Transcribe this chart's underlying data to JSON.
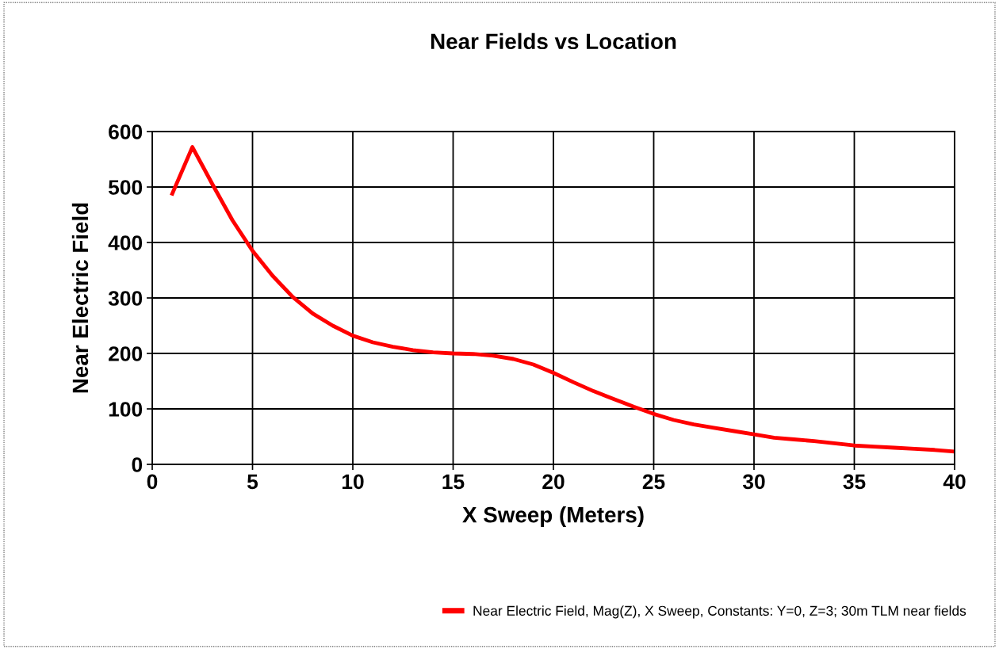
{
  "chart_data": {
    "type": "line",
    "title": "Near Fields vs Location",
    "xlabel": "X Sweep (Meters)",
    "ylabel": "Near Electric Field",
    "x": [
      1,
      2,
      3,
      4,
      5,
      6,
      7,
      8,
      9,
      10,
      11,
      12,
      13,
      14,
      15,
      16,
      17,
      18,
      19,
      20,
      21,
      22,
      23,
      24,
      25,
      26,
      27,
      28,
      29,
      30,
      31,
      32,
      33,
      34,
      35,
      36,
      37,
      38,
      39,
      40
    ],
    "series": [
      {
        "name": "Near Electric Field, Mag(Z), X Sweep, Constants: Y=0, Z=3; 30m TLM near fields",
        "color": "#ff0000",
        "values": [
          488,
          572,
          505,
          440,
          385,
          340,
          302,
          272,
          250,
          232,
          220,
          212,
          206,
          202,
          200,
          199,
          196,
          190,
          180,
          165,
          148,
          132,
          118,
          104,
          91,
          80,
          72,
          66,
          60,
          54,
          48,
          45,
          42,
          38,
          34,
          32,
          30,
          28,
          26,
          23
        ]
      }
    ],
    "xlim": [
      0,
      40
    ],
    "xticks": [
      0,
      5,
      10,
      15,
      20,
      25,
      30,
      35,
      40
    ],
    "ylim": [
      0,
      600
    ],
    "yticks": [
      0,
      100,
      200,
      300,
      400,
      500,
      600
    ],
    "grid": true,
    "legend": "bottom right",
    "marker": "none",
    "line_style": "solid"
  }
}
